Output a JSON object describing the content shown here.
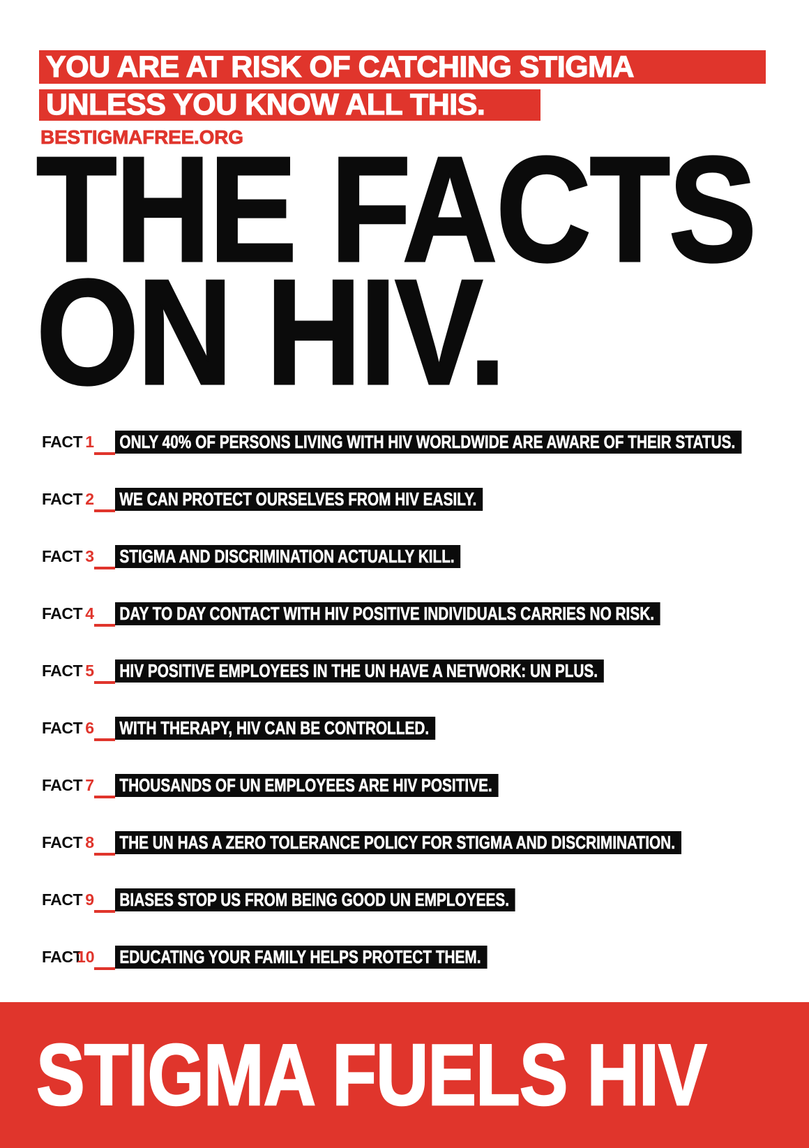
{
  "header": {
    "risk_line1": "YOU ARE AT RISK OF CATCHING STIGMA",
    "risk_line2": "UNLESS YOU KNOW ALL THIS.",
    "website": "BESTIGMAFREE.ORG"
  },
  "headline": {
    "line1": "THE FACTS",
    "line2": "ON HIV."
  },
  "facts": {
    "label": "FACT",
    "items": [
      {
        "number": "1",
        "text": "ONLY 40% OF PERSONS LIVING WITH HIV WORLDWIDE ARE AWARE OF THEIR STATUS."
      },
      {
        "number": "2",
        "text": "WE CAN PROTECT OURSELVES FROM HIV EASILY."
      },
      {
        "number": "3",
        "text": "STIGMA AND DISCRIMINATION ACTUALLY KILL."
      },
      {
        "number": "4",
        "text": "DAY TO DAY CONTACT WITH HIV POSITIVE INDIVIDUALS CARRIES NO RISK."
      },
      {
        "number": "5",
        "text": "HIV POSITIVE EMPLOYEES IN THE UN HAVE A NETWORK: UN PLUS."
      },
      {
        "number": "6",
        "text": "WITH THERAPY, HIV CAN BE CONTROLLED."
      },
      {
        "number": "7",
        "text": "THOUSANDS OF UN EMPLOYEES ARE HIV POSITIVE."
      },
      {
        "number": "8",
        "text": "THE UN HAS A ZERO TOLERANCE POLICY FOR STIGMA AND DISCRIMINATION."
      },
      {
        "number": "9",
        "text": "BIASES STOP US FROM BEING GOOD UN EMPLOYEES."
      },
      {
        "number": "10",
        "text": "EDUCATING YOUR FAMILY HELPS PROTECT THEM."
      }
    ]
  },
  "footer": {
    "slogan": "STIGMA FUELS HIV"
  },
  "colors": {
    "red": "#e0352c",
    "black": "#0b0b0b",
    "white": "#ffffff"
  }
}
